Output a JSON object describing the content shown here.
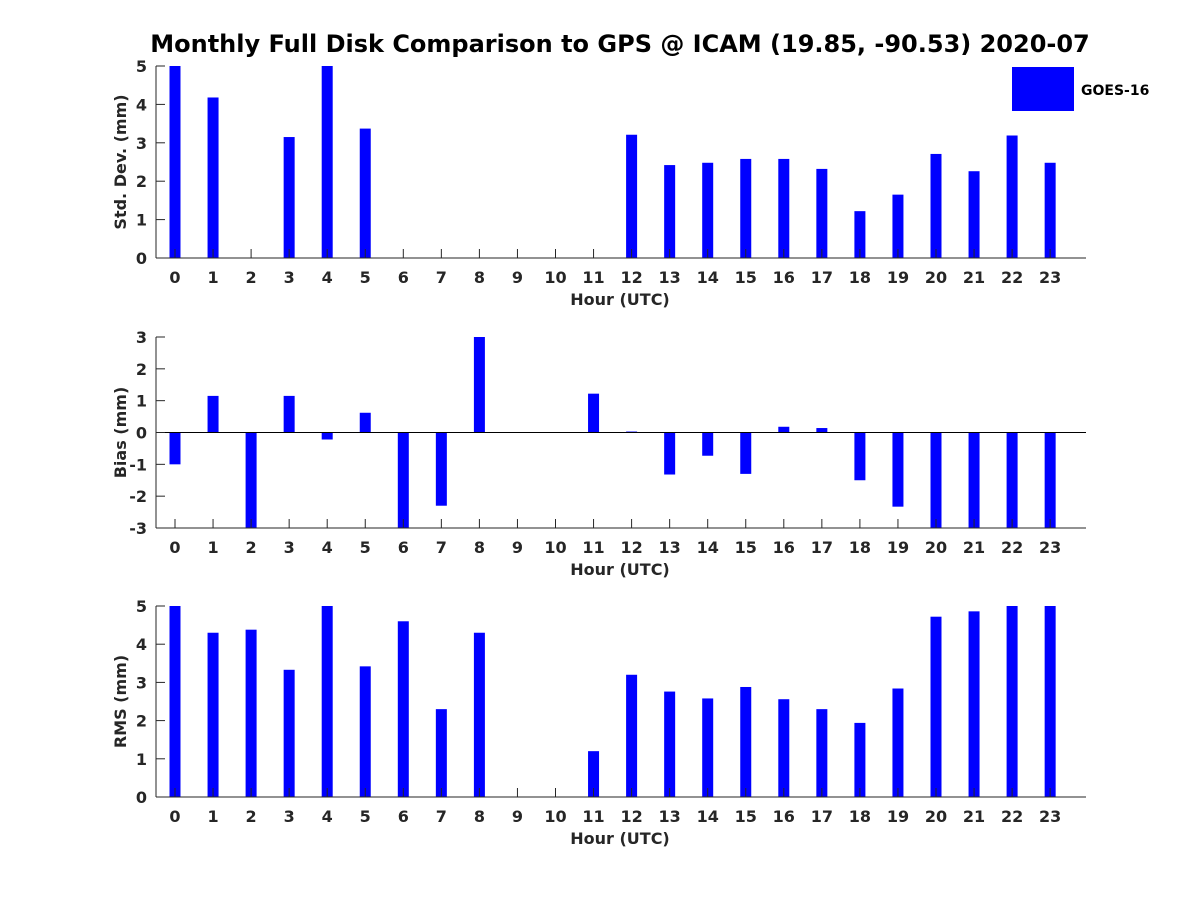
{
  "title": "Monthly Full Disk Comparison to GPS @ ICAM (19.85, -90.53) 2020-07",
  "legend": {
    "label": "GOES-16",
    "color": "#0000ff",
    "placement": "top-right"
  },
  "colors": {
    "bar": "#0000ff",
    "axis": "#262626"
  },
  "chart_data": [
    {
      "type": "bar",
      "name": "std-dev",
      "xlabel": "Hour (UTC)",
      "ylabel": "Std. Dev. (mm)",
      "ylim": [
        0,
        5
      ],
      "yticks": [
        0,
        1,
        2,
        3,
        4,
        5
      ],
      "categories": [
        "0",
        "1",
        "2",
        "3",
        "4",
        "5",
        "6",
        "7",
        "8",
        "9",
        "10",
        "11",
        "12",
        "13",
        "14",
        "15",
        "16",
        "17",
        "18",
        "19",
        "20",
        "21",
        "22",
        "23"
      ],
      "values": [
        5.0,
        4.18,
        null,
        3.15,
        5.0,
        3.37,
        null,
        null,
        null,
        null,
        null,
        null,
        3.21,
        2.42,
        2.48,
        2.58,
        2.58,
        2.32,
        1.22,
        1.65,
        2.71,
        2.26,
        3.19,
        2.48
      ]
    },
    {
      "type": "bar",
      "name": "bias",
      "xlabel": "Hour (UTC)",
      "ylabel": "Bias (mm)",
      "ylim": [
        -3,
        3
      ],
      "yticks": [
        -3,
        -2,
        -1,
        0,
        1,
        2,
        3
      ],
      "categories": [
        "0",
        "1",
        "2",
        "3",
        "4",
        "5",
        "6",
        "7",
        "8",
        "9",
        "10",
        "11",
        "12",
        "13",
        "14",
        "15",
        "16",
        "17",
        "18",
        "19",
        "20",
        "21",
        "22",
        "23"
      ],
      "values": [
        -1.0,
        1.15,
        -3.0,
        1.15,
        -0.22,
        0.62,
        -3.0,
        -2.3,
        3.0,
        null,
        null,
        1.22,
        0.03,
        -1.32,
        -0.73,
        -1.3,
        0.18,
        0.14,
        -1.5,
        -2.33,
        -3.0,
        -3.0,
        -3.0,
        -3.0
      ]
    },
    {
      "type": "bar",
      "name": "rms",
      "xlabel": "Hour (UTC)",
      "ylabel": "RMS (mm)",
      "ylim": [
        0,
        5
      ],
      "yticks": [
        0,
        1,
        2,
        3,
        4,
        5
      ],
      "categories": [
        "0",
        "1",
        "2",
        "3",
        "4",
        "5",
        "6",
        "7",
        "8",
        "9",
        "10",
        "11",
        "12",
        "13",
        "14",
        "15",
        "16",
        "17",
        "18",
        "19",
        "20",
        "21",
        "22",
        "23"
      ],
      "values": [
        5.0,
        4.3,
        4.38,
        3.33,
        5.0,
        3.42,
        4.6,
        2.3,
        4.3,
        null,
        null,
        1.2,
        3.2,
        2.76,
        2.58,
        2.88,
        2.56,
        2.3,
        1.94,
        2.84,
        4.72,
        4.86,
        5.0,
        5.0
      ]
    }
  ]
}
